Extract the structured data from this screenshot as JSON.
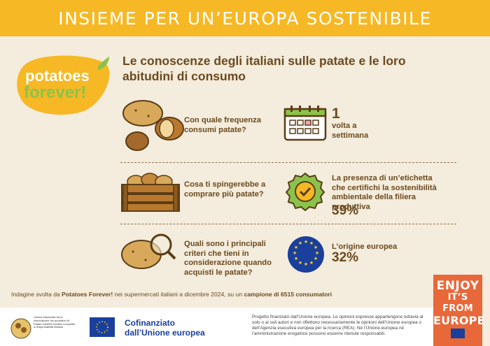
{
  "header": {
    "title": "INSIEME PER UN’EUROPA SOSTENIBILE"
  },
  "logo": {
    "line1": "potatoes",
    "line2": "forever!"
  },
  "subtitle": "Le conoscenze degli italiani sulle patate e le loro abitudini di consumo",
  "rows": [
    {
      "question": "Con quale frequenza consumi patate?",
      "answer_big": "1",
      "answer_text": "volta a settimana",
      "percent": ""
    },
    {
      "question": "Cosa ti spingerebbe a comprare più patate?",
      "answer_big": "",
      "answer_text": "La presenza di un’etichetta che certifichi la sostenibilità ambientale della filiera produttiva",
      "percent": "39%"
    },
    {
      "question": "Quali sono i principali criteri che tieni in considerazione quando acquisti le patate?",
      "answer_big": "",
      "answer_text": "L’origine europea",
      "percent": "32%"
    }
  ],
  "survey": {
    "prefix": "Indagine svolta da ",
    "brand": "Potatoes Forever!",
    "middle": " nei supermercati italiani a dicembre 2024, su un ",
    "sample": "campione di 6515 consumatori"
  },
  "enjoy": {
    "line1": "ENJOY",
    "line2": "IT’S FROM",
    "line3": "EUROPE"
  },
  "footer": {
    "unapro": "Unione Nazionale tra le Associazioni dei produttori di Patate UNAPA Società Consortile a responsabilità limitata",
    "cofinanziato_1": "Cofinanziato",
    "cofinanziato_2": "dall’Unione europea",
    "disclaimer": "Progetto finanziato dall’Unione europea. Le opinioni espresse appartengono tuttavia al solo o ai soli autori e non riflettono necessariamente le opinioni dell’Unione europea o dell’Agenzia esecutiva europea per la ricerca (REA). Né l’Unione europea né l’amministrazione erogatrice possono esserne ritenute responsabili."
  },
  "colors": {
    "header": "#f6b824",
    "background": "#f4ecdc",
    "text": "#6b4a1f",
    "green": "#8bc34a",
    "eu_blue": "#1a3f9c",
    "enjoy": "#e8683a"
  }
}
